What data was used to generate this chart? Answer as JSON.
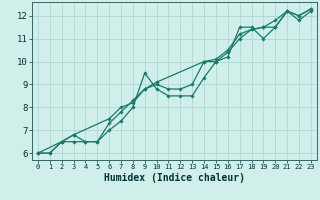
{
  "title": "",
  "xlabel": "Humidex (Indice chaleur)",
  "bg_color": "#d0eeea",
  "grid_color": "#b0d8d0",
  "line_color": "#1a7a6a",
  "xlim": [
    -0.5,
    23.5
  ],
  "ylim": [
    5.7,
    12.6
  ],
  "xticks": [
    0,
    1,
    2,
    3,
    4,
    5,
    6,
    7,
    8,
    9,
    10,
    11,
    12,
    13,
    14,
    15,
    16,
    17,
    18,
    19,
    20,
    21,
    22,
    23
  ],
  "yticks": [
    6,
    7,
    8,
    9,
    10,
    11,
    12
  ],
  "series": [
    {
      "x": [
        0,
        1,
        2,
        3,
        4,
        5,
        6,
        7,
        8,
        9,
        10,
        11,
        12,
        13,
        14,
        15,
        16,
        17,
        18,
        19,
        20,
        21,
        22,
        23
      ],
      "y": [
        6.0,
        6.0,
        6.5,
        6.5,
        6.5,
        6.5,
        7.0,
        7.4,
        8.0,
        9.5,
        8.8,
        8.5,
        8.5,
        8.5,
        9.3,
        10.0,
        10.2,
        11.5,
        11.5,
        11.0,
        11.5,
        12.2,
        11.8,
        12.2
      ]
    },
    {
      "x": [
        0,
        1,
        2,
        3,
        4,
        5,
        6,
        7,
        8,
        9,
        10,
        11,
        12,
        13,
        14,
        15,
        16,
        17,
        18,
        19,
        20,
        21,
        22,
        23
      ],
      "y": [
        6.0,
        6.0,
        6.5,
        6.8,
        6.5,
        6.5,
        7.3,
        7.8,
        8.3,
        8.8,
        9.0,
        8.8,
        8.8,
        9.0,
        10.0,
        10.1,
        10.5,
        11.2,
        11.4,
        11.5,
        11.5,
        12.2,
        12.0,
        12.3
      ]
    },
    {
      "x": [
        0,
        2,
        3,
        6,
        7,
        8,
        9,
        10,
        14,
        15,
        16,
        17,
        18,
        19,
        20,
        21,
        22,
        23
      ],
      "y": [
        6.0,
        6.5,
        6.8,
        7.5,
        8.0,
        8.2,
        8.8,
        9.1,
        10.0,
        10.0,
        10.4,
        11.0,
        11.4,
        11.5,
        11.8,
        12.2,
        12.0,
        12.3
      ]
    }
  ]
}
